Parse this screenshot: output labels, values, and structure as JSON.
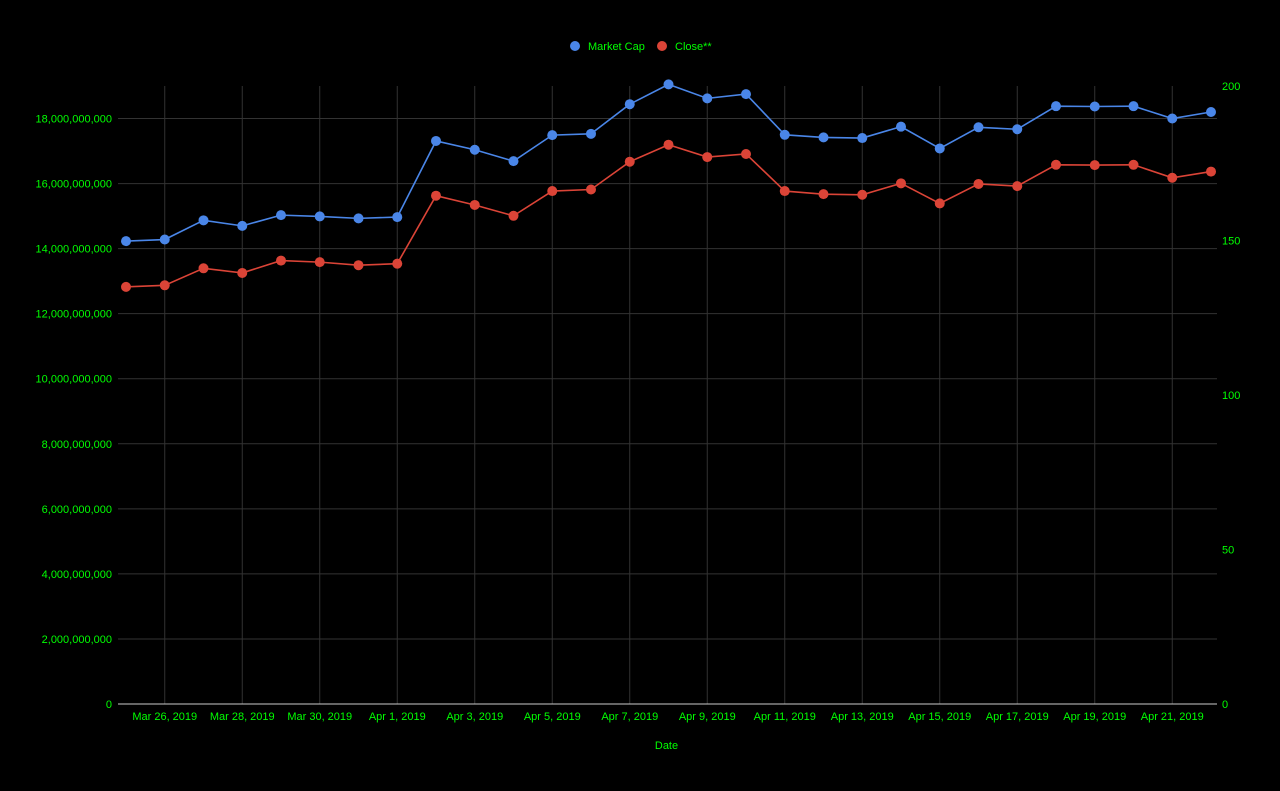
{
  "chart_data": {
    "type": "line",
    "xlabel": "Date",
    "x": [
      "Mar 25, 2019",
      "Mar 26, 2019",
      "Mar 27, 2019",
      "Mar 28, 2019",
      "Mar 29, 2019",
      "Mar 30, 2019",
      "Mar 31, 2019",
      "Apr 1, 2019",
      "Apr 2, 2019",
      "Apr 3, 2019",
      "Apr 4, 2019",
      "Apr 5, 2019",
      "Apr 6, 2019",
      "Apr 7, 2019",
      "Apr 8, 2019",
      "Apr 9, 2019",
      "Apr 10, 2019",
      "Apr 11, 2019",
      "Apr 12, 2019",
      "Apr 13, 2019",
      "Apr 14, 2019",
      "Apr 15, 2019",
      "Apr 16, 2019",
      "Apr 17, 2019",
      "Apr 18, 2019",
      "Apr 19, 2019",
      "Apr 20, 2019",
      "Apr 21, 2019",
      "Apr 22, 2019"
    ],
    "x_tick_labels": [
      "Mar 26, 2019",
      "Mar 28, 2019",
      "Mar 30, 2019",
      "Apr 1, 2019",
      "Apr 3, 2019",
      "Apr 5, 2019",
      "Apr 7, 2019",
      "Apr 9, 2019",
      "Apr 11, 2019",
      "Apr 13, 2019",
      "Apr 15, 2019",
      "Apr 17, 2019",
      "Apr 19, 2019",
      "Apr 21, 2019"
    ],
    "y_left": {
      "range": [
        0,
        19000000000
      ],
      "tick_values": [
        0,
        2000000000,
        4000000000,
        6000000000,
        8000000000,
        10000000000,
        12000000000,
        14000000000,
        16000000000,
        18000000000
      ],
      "tick_labels": [
        "0",
        "2,000,000,000",
        "4,000,000,000",
        "6,000,000,000",
        "8,000,000,000",
        "10,000,000,000",
        "12,000,000,000",
        "14,000,000,000",
        "16,000,000,000",
        "18,000,000,000"
      ]
    },
    "y_right": {
      "range": [
        0,
        200
      ],
      "tick_values": [
        0,
        50,
        100,
        150,
        200
      ],
      "tick_labels": [
        "0",
        "50",
        "100",
        "150",
        "200"
      ]
    },
    "grid": true,
    "legend_position": "top-center",
    "series": [
      {
        "name": "Market Cap",
        "axis": "left",
        "color": "#4a86e8",
        "values": [
          14230000000,
          14280000000,
          14870000000,
          14700000000,
          15030000000,
          14990000000,
          14930000000,
          14970000000,
          17310000000,
          17040000000,
          16690000000,
          17490000000,
          17530000000,
          18440000000,
          19050000000,
          18620000000,
          18750000000,
          17500000000,
          17420000000,
          17400000000,
          17750000000,
          17080000000,
          17730000000,
          17670000000,
          18380000000,
          18370000000,
          18380000000,
          18000000000,
          18200000000
        ]
      },
      {
        "name": "Close**",
        "axis": "right",
        "color": "#db4437",
        "values": [
          135.0,
          135.5,
          141.0,
          139.5,
          143.5,
          143.0,
          142.0,
          142.5,
          164.5,
          161.5,
          158.0,
          166.0,
          166.5,
          175.5,
          181.0,
          177.0,
          178.0,
          166.0,
          165.0,
          164.8,
          168.5,
          162.0,
          168.3,
          167.6,
          174.5,
          174.4,
          174.5,
          170.3,
          172.3
        ]
      }
    ],
    "colors": {
      "background": "#000000",
      "text": "#00ff00",
      "grid": "#333333",
      "axis": "#cccccc"
    }
  }
}
